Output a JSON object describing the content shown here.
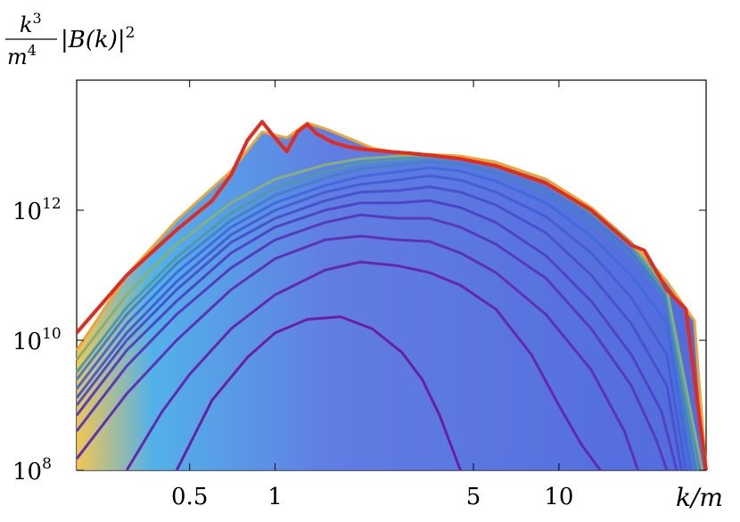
{
  "chart_data": {
    "type": "line",
    "title": "",
    "y_axis_label": {
      "prefix": "k",
      "prefix_exp": "3",
      "denominator": "m",
      "denominator_exp": "4",
      "body": "|B(k)|",
      "body_exp": "2"
    },
    "x_axis_label": "k/m",
    "x_scale": "log",
    "y_scale": "log",
    "xlim": [
      0.2,
      33
    ],
    "ylim": [
      100000000.0,
      100000000000000.0
    ],
    "x_ticks": [
      {
        "value": 0.5,
        "label": "0.5"
      },
      {
        "value": 1,
        "label": "1"
      },
      {
        "value": 5,
        "label": "5"
      },
      {
        "value": 10,
        "label": "10"
      }
    ],
    "y_ticks": [
      {
        "value": 100000000.0,
        "base": "10",
        "exp": "8"
      },
      {
        "value": 10000000000.0,
        "base": "10",
        "exp": "10"
      },
      {
        "value": 1000000000000.0,
        "base": "10",
        "exp": "12"
      }
    ],
    "grid": false,
    "legend": "none",
    "color_scale": "purple (early) → blue → green → yellow → red (late)",
    "series_colors": {
      "early": "#6a1fa2",
      "late": "#e6291b"
    },
    "series_style": "many stacked curves, later times on top",
    "series": [
      {
        "name": "",
        "x": [
          0.45,
          0.6,
          0.8,
          1.0,
          1.3,
          1.7,
          2.2,
          2.8,
          3.3,
          3.8,
          4.2,
          4.5
        ],
        "y": [
          100000000.0,
          1200000000.0,
          5500000000.0,
          13000000000.0,
          21000000000.0,
          23000000000.0,
          15000000000.0,
          6500000000.0,
          2500000000.0,
          700000000.0,
          220000000.0,
          100000000.0
        ]
      },
      {
        "name": "",
        "x": [
          0.3,
          0.4,
          0.5,
          0.7,
          1.0,
          1.5,
          2.0,
          2.7,
          3.5,
          4.5,
          6,
          8,
          10,
          12,
          14
        ],
        "y": [
          100000000.0,
          800000000.0,
          3000000000.0,
          15000000000.0,
          50000000000.0,
          120000000000.0,
          160000000000.0,
          140000000000.0,
          110000000000.0,
          70000000000.0,
          30000000000.0,
          6000000000.0,
          1000000000.0,
          250000000.0,
          100000000.0
        ]
      },
      {
        "name": "",
        "x": [
          0.2,
          0.3,
          0.45,
          0.7,
          1.0,
          1.5,
          2.0,
          2.7,
          3.5,
          4.5,
          6,
          9,
          13,
          17,
          19
        ],
        "y": [
          150000000.0,
          1500000000.0,
          10000000000.0,
          60000000000.0,
          180000000000.0,
          350000000000.0,
          400000000000.0,
          350000000000.0,
          330000000000.0,
          220000000000.0,
          110000000000.0,
          25000000000.0,
          3500000000.0,
          400000000.0,
          100000000.0
        ]
      },
      {
        "name": "",
        "x": [
          0.2,
          0.3,
          0.45,
          0.7,
          1.0,
          1.5,
          2.0,
          2.7,
          3.5,
          4.5,
          6,
          9,
          13,
          18,
          22,
          24
        ],
        "y": [
          400000000.0,
          4000000000.0,
          25000000000.0,
          130000000000.0,
          350000000000.0,
          650000000000.0,
          850000000000.0,
          750000000000.0,
          750000000000.0,
          550000000000.0,
          300000000000.0,
          90000000000.0,
          15000000000.0,
          2000000000.0,
          300000000.0,
          100000000.0
        ]
      },
      {
        "name": "",
        "x": [
          0.2,
          0.3,
          0.45,
          0.7,
          1.0,
          1.5,
          2.0,
          2.7,
          3.5,
          4.5,
          6,
          9,
          13,
          18,
          23,
          26
        ],
        "y": [
          700000000.0,
          7000000000.0,
          40000000000.0,
          220000000000.0,
          550000000000.0,
          1000000000000.0,
          1300000000000.0,
          1300000000000.0,
          1400000000000.0,
          1100000000000.0,
          650000000000.0,
          200000000000.0,
          40000000000.0,
          6000000000.0,
          800000000.0,
          100000000.0
        ]
      },
      {
        "name": "",
        "x": [
          0.2,
          0.3,
          0.45,
          0.7,
          1.0,
          1.5,
          2.0,
          2.7,
          3.5,
          4.5,
          6,
          9,
          13,
          18,
          24,
          27
        ],
        "y": [
          1000000000.0,
          10000000000.0,
          60000000000.0,
          320000000000.0,
          750000000000.0,
          1400000000000.0,
          1900000000000.0,
          2000000000000.0,
          2300000000000.0,
          1900000000000.0,
          1200000000000.0,
          450000000000.0,
          100000000000.0,
          18000000000.0,
          2000000000.0,
          100000000.0
        ]
      },
      {
        "name": "",
        "x": [
          0.2,
          0.3,
          0.45,
          0.7,
          1.0,
          1.5,
          2.0,
          2.7,
          3.5,
          4.5,
          6,
          9,
          13,
          18,
          24,
          28
        ],
        "y": [
          1300000000.0,
          13000000000.0,
          80000000000.0,
          420000000000.0,
          1000000000000.0,
          1900000000000.0,
          2500000000000.0,
          2900000000000.0,
          3400000000000.0,
          2900000000000.0,
          1900000000000.0,
          800000000000.0,
          220000000000.0,
          45000000000.0,
          6000000000.0,
          100000000.0
        ]
      },
      {
        "name": "",
        "x": [
          0.2,
          0.3,
          0.45,
          0.7,
          1.0,
          1.5,
          2.0,
          2.7,
          3.5,
          4.5,
          6,
          9,
          13,
          18,
          24,
          29
        ],
        "y": [
          1800000000.0,
          18000000000.0,
          110000000000.0,
          550000000000.0,
          1300000000000.0,
          2400000000000.0,
          3300000000000.0,
          3900000000000.0,
          4500000000000.0,
          4000000000000.0,
          2800000000000.0,
          1300000000000.0,
          400000000000.0,
          100000000000.0,
          18000000000.0,
          100000000.0
        ]
      },
      {
        "name": "",
        "x": [
          0.2,
          0.3,
          0.45,
          0.7,
          1.0,
          1.5,
          2.0,
          2.7,
          3.5,
          4.5,
          6,
          9,
          13,
          18,
          24,
          30
        ],
        "y": [
          2500000000.0,
          25000000000.0,
          150000000000.0,
          700000000000.0,
          1700000000000.0,
          3100000000000.0,
          4300000000000.0,
          5000000000000.0,
          5600000000000.0,
          5100000000000.0,
          3700000000000.0,
          1900000000000.0,
          650000000000.0,
          200000000000.0,
          40000000000.0,
          100000000.0
        ]
      },
      {
        "name": "",
        "x": [
          0.2,
          0.3,
          0.45,
          0.7,
          1.0,
          1.5,
          2.0,
          2.7,
          3.5,
          4.5,
          6,
          9,
          13,
          18,
          24,
          31
        ],
        "y": [
          3200000000.0,
          32000000000.0,
          190000000000.0,
          900000000000.0,
          2200000000000.0,
          3900000000000.0,
          5300000000000.0,
          6000000000000.0,
          6600000000000.0,
          6100000000000.0,
          4600000000000.0,
          2500000000000.0,
          900000000000.0,
          270000000000.0,
          50000000000.0,
          100000000.0
        ]
      },
      {
        "name": "",
        "x": [
          0.2,
          0.3,
          0.45,
          0.7,
          1.0,
          1.5,
          2.0,
          2.7,
          3.5,
          4.5,
          6,
          9,
          13,
          18,
          24,
          32
        ],
        "y": [
          5000000000.0,
          50000000000.0,
          300000000000.0,
          1300000000000.0,
          3000000000000.0,
          5000000000000.0,
          6200000000000.0,
          6800000000000.0,
          7200000000000.0,
          6800000000000.0,
          5300000000000.0,
          3000000000000.0,
          1100000000000.0,
          320000000000.0,
          60000000000.0,
          100000000.0
        ]
      },
      {
        "name": "",
        "x": [
          0.2,
          0.3,
          0.45,
          0.7,
          0.9,
          1.1,
          1.3,
          1.5,
          1.8,
          2.2,
          2.8,
          3.5,
          4.5,
          6,
          9,
          13,
          18,
          20,
          24,
          30,
          33
        ],
        "y": [
          7000000000.0,
          100000000000.0,
          700000000000.0,
          4000000000000.0,
          16000000000000.0,
          13000000000000.0,
          22000000000000.0,
          18000000000000.0,
          13000000000000.0,
          9000000000000.0,
          7500000000000.0,
          7200000000000.0,
          6800000000000.0,
          5500000000000.0,
          3000000000000.0,
          1100000000000.0,
          300000000000.0,
          200000000000.0,
          80000000000.0,
          20000000000.0,
          100000000.0
        ]
      },
      {
        "name": "",
        "x": [
          0.2,
          0.3,
          0.45,
          0.6,
          0.7,
          0.8,
          0.9,
          1.0,
          1.1,
          1.2,
          1.3,
          1.4,
          1.6,
          1.8,
          2.0,
          2.5,
          3.0,
          3.5,
          4.5,
          6,
          9,
          13,
          18,
          20,
          24,
          28,
          33
        ],
        "y": [
          13000000000.0,
          100000000000.0,
          500000000000.0,
          1400000000000.0,
          3500000000000.0,
          12000000000000.0,
          23000000000000.0,
          13000000000000.0,
          8000000000000.0,
          16000000000000.0,
          21000000000000.0,
          15000000000000.0,
          11000000000000.0,
          9500000000000.0,
          8800000000000.0,
          8000000000000.0,
          7500000000000.0,
          7000000000000.0,
          6200000000000.0,
          4800000000000.0,
          2600000000000.0,
          1000000000000.0,
          290000000000.0,
          240000000000.0,
          60000000000.0,
          30000000000.0,
          100000000.0
        ]
      }
    ]
  }
}
